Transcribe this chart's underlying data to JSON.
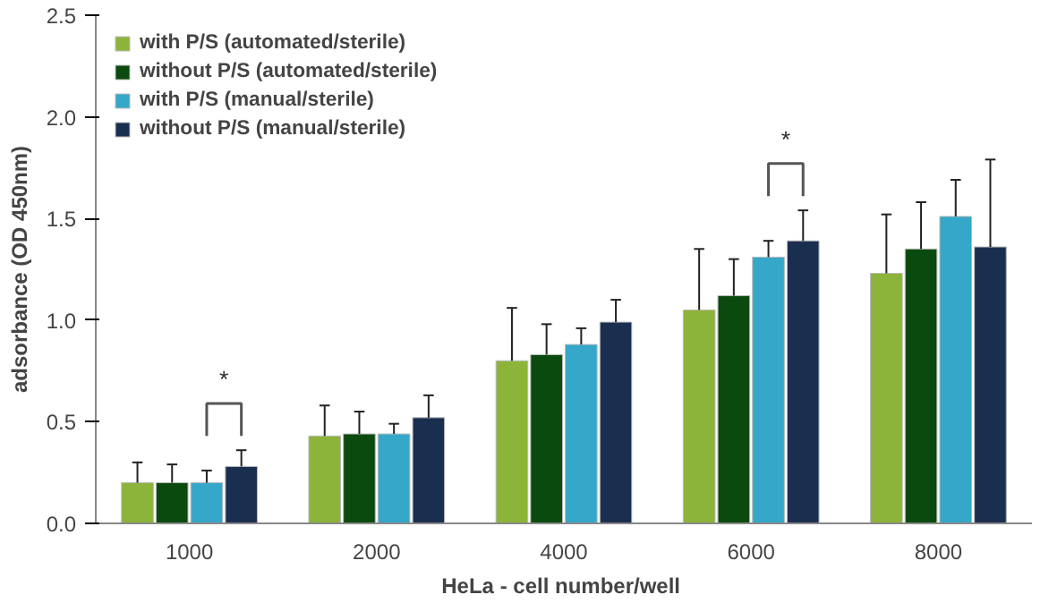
{
  "chart_data": {
    "type": "bar",
    "xlabel": "HeLa  - cell number/well",
    "ylabel": "adsorbance (OD 450nm)",
    "categories": [
      "1000",
      "2000",
      "4000",
      "6000",
      "8000"
    ],
    "series": [
      {
        "name": "with P/S (automated/sterile)",
        "color": "#8db43a",
        "values": [
          0.2,
          0.43,
          0.8,
          1.05,
          1.23
        ],
        "errors": [
          [
            0.2,
            0.3
          ],
          [
            0.43,
            0.58
          ],
          [
            0.8,
            1.06
          ],
          [
            1.05,
            1.35
          ],
          [
            1.23,
            1.52
          ]
        ]
      },
      {
        "name": "without P/S (automated/sterile)",
        "color": "#0b4a0e",
        "values": [
          0.2,
          0.44,
          0.83,
          1.12,
          1.35
        ],
        "errors": [
          [
            0.2,
            0.29
          ],
          [
            0.44,
            0.55
          ],
          [
            0.83,
            0.98
          ],
          [
            1.12,
            1.3
          ],
          [
            1.35,
            1.58
          ]
        ]
      },
      {
        "name": "with P/S (manual/sterile)",
        "color": "#35a7c8",
        "values": [
          0.2,
          0.44,
          0.88,
          1.31,
          1.51
        ],
        "errors": [
          [
            0.2,
            0.26
          ],
          [
            0.44,
            0.49
          ],
          [
            0.88,
            0.96
          ],
          [
            1.31,
            1.39
          ],
          [
            1.51,
            1.69
          ]
        ]
      },
      {
        "name": "without P/S (manual/sterile)",
        "color": "#1a2e50",
        "values": [
          0.28,
          0.52,
          0.99,
          1.39,
          1.36
        ],
        "errors": [
          [
            0.28,
            0.36
          ],
          [
            0.52,
            0.63
          ],
          [
            0.99,
            1.1
          ],
          [
            1.39,
            1.54
          ],
          [
            1.36,
            1.79
          ]
        ]
      }
    ],
    "annotations": [
      "*",
      "*"
    ],
    "ylim": [
      0,
      2.5
    ],
    "yticks": [
      {
        "value": 0,
        "label": "0.0"
      },
      {
        "value": 0.5,
        "label": "0.5"
      },
      {
        "value": 1,
        "label": "1.0"
      },
      {
        "value": 1.5,
        "label": "1.5"
      },
      {
        "value": 2,
        "label": "2.0"
      },
      {
        "value": 2.5,
        "label": "2.5"
      }
    ],
    "grid": false,
    "legend": "top left"
  }
}
